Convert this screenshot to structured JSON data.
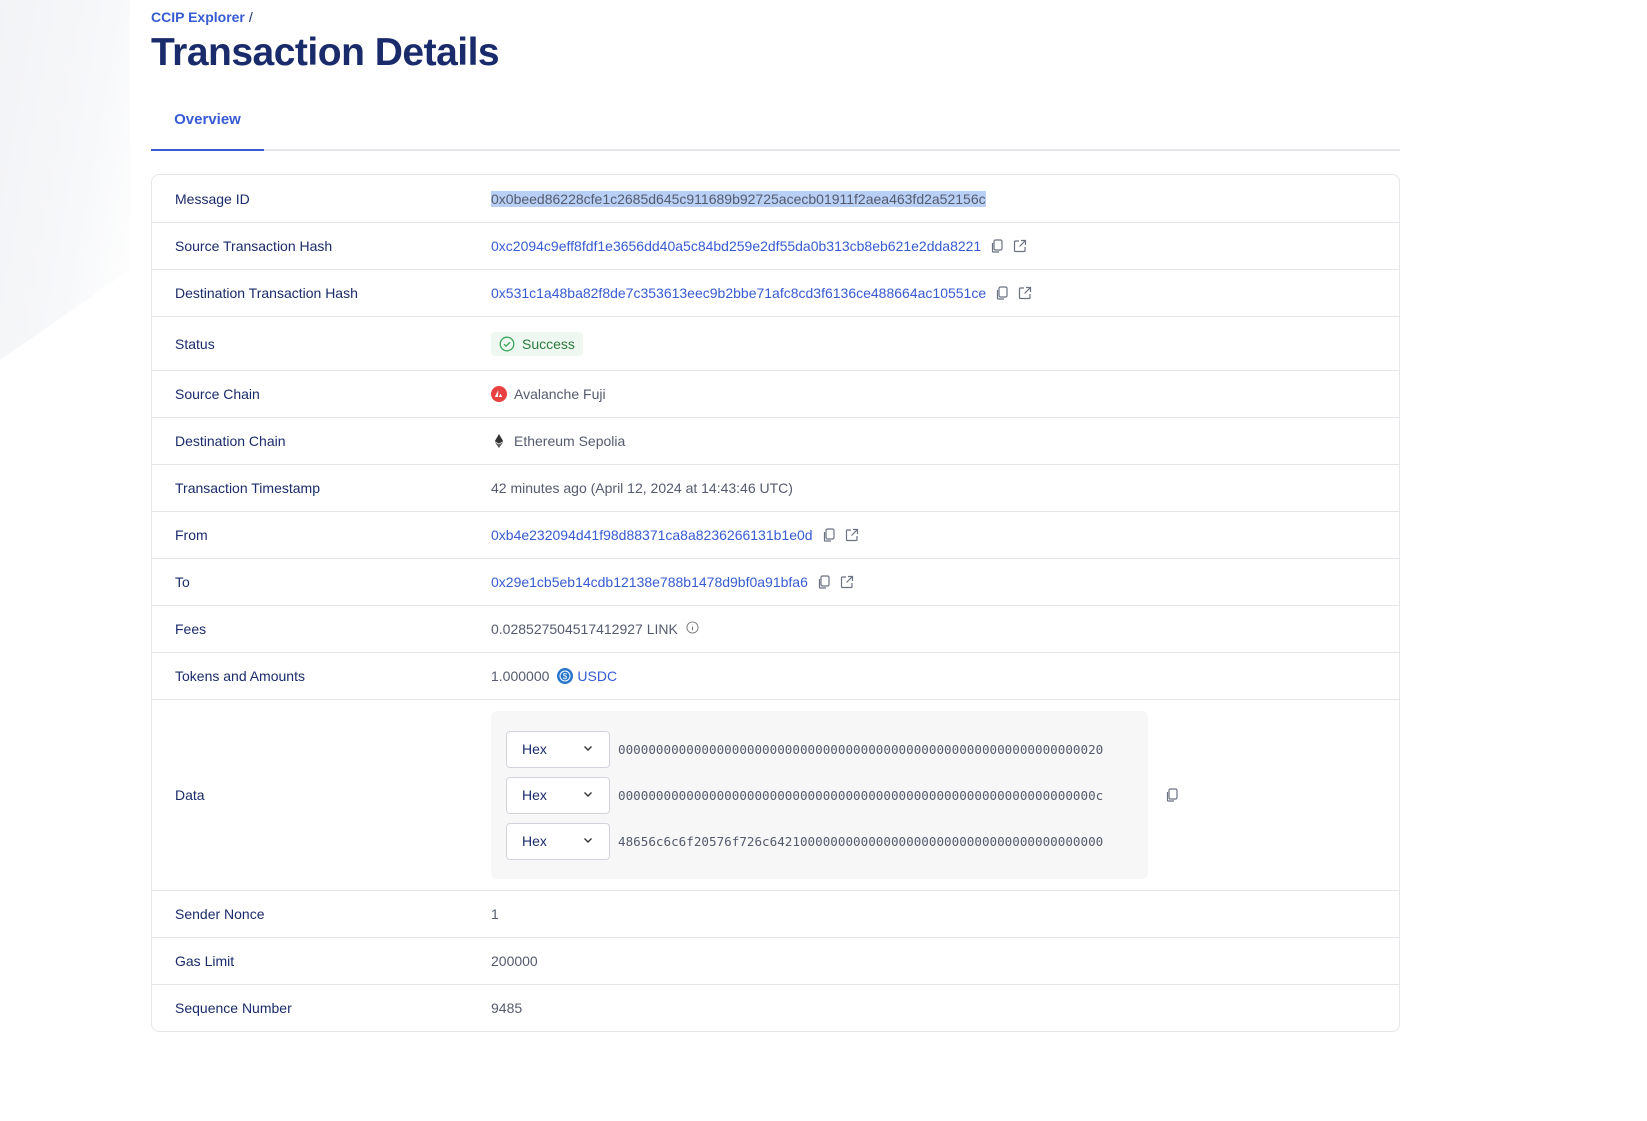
{
  "breadcrumb": {
    "root": "CCIP Explorer",
    "sep": "/"
  },
  "title": "Transaction Details",
  "tabs": [
    {
      "label": "Overview",
      "active": true
    }
  ],
  "colors": {
    "accent": "#375bd2",
    "title": "#1a2b6b",
    "success": "#2a7a3d",
    "avalanche": "#e84142"
  },
  "details": {
    "message_id": {
      "label": "Message ID",
      "value": "0x0beed86228cfe1c2685d645c911689b92725acecb01911f2aea463fd2a52156c"
    },
    "source_tx": {
      "label": "Source Transaction Hash",
      "value": "0xc2094c9eff8fdf1e3656dd40a5c84bd259e2df55da0b313cb8eb621e2dda8221"
    },
    "dest_tx": {
      "label": "Destination Transaction Hash",
      "value": "0x531c1a48ba82f8de7c353613eec9b2bbe71afc8cd3f6136ce488664ac10551ce"
    },
    "status": {
      "label": "Status",
      "value": "Success",
      "icon": "check-circle-icon"
    },
    "source_chain": {
      "label": "Source Chain",
      "value": "Avalanche Fuji",
      "icon": "avalanche-icon"
    },
    "dest_chain": {
      "label": "Destination Chain",
      "value": "Ethereum Sepolia",
      "icon": "ethereum-icon"
    },
    "timestamp": {
      "label": "Transaction Timestamp",
      "value": "42 minutes ago (April 12, 2024 at 14:43:46 UTC)"
    },
    "from": {
      "label": "From",
      "value": "0xb4e232094d41f98d88371ca8a8236266131b1e0d"
    },
    "to": {
      "label": "To",
      "value": "0x29e1cb5eb14cdb12138e788b1478d9bf0a91bfa6"
    },
    "fees": {
      "label": "Fees",
      "value": "0.028527504517412927 LINK",
      "icon": "info-icon"
    },
    "tokens": {
      "label": "Tokens and Amounts",
      "amount": "1.000000",
      "token": "USDC",
      "icon": "usdc-icon"
    },
    "data": {
      "label": "Data",
      "lines": [
        {
          "format": "Hex",
          "value": "0000000000000000000000000000000000000000000000000000000000000020"
        },
        {
          "format": "Hex",
          "value": "000000000000000000000000000000000000000000000000000000000000000c"
        },
        {
          "format": "Hex",
          "value": "48656c6c6f20576f726c64210000000000000000000000000000000000000000"
        }
      ]
    },
    "nonce": {
      "label": "Sender Nonce",
      "value": "1"
    },
    "gas": {
      "label": "Gas Limit",
      "value": "200000"
    },
    "sequence": {
      "label": "Sequence Number",
      "value": "9485"
    }
  }
}
